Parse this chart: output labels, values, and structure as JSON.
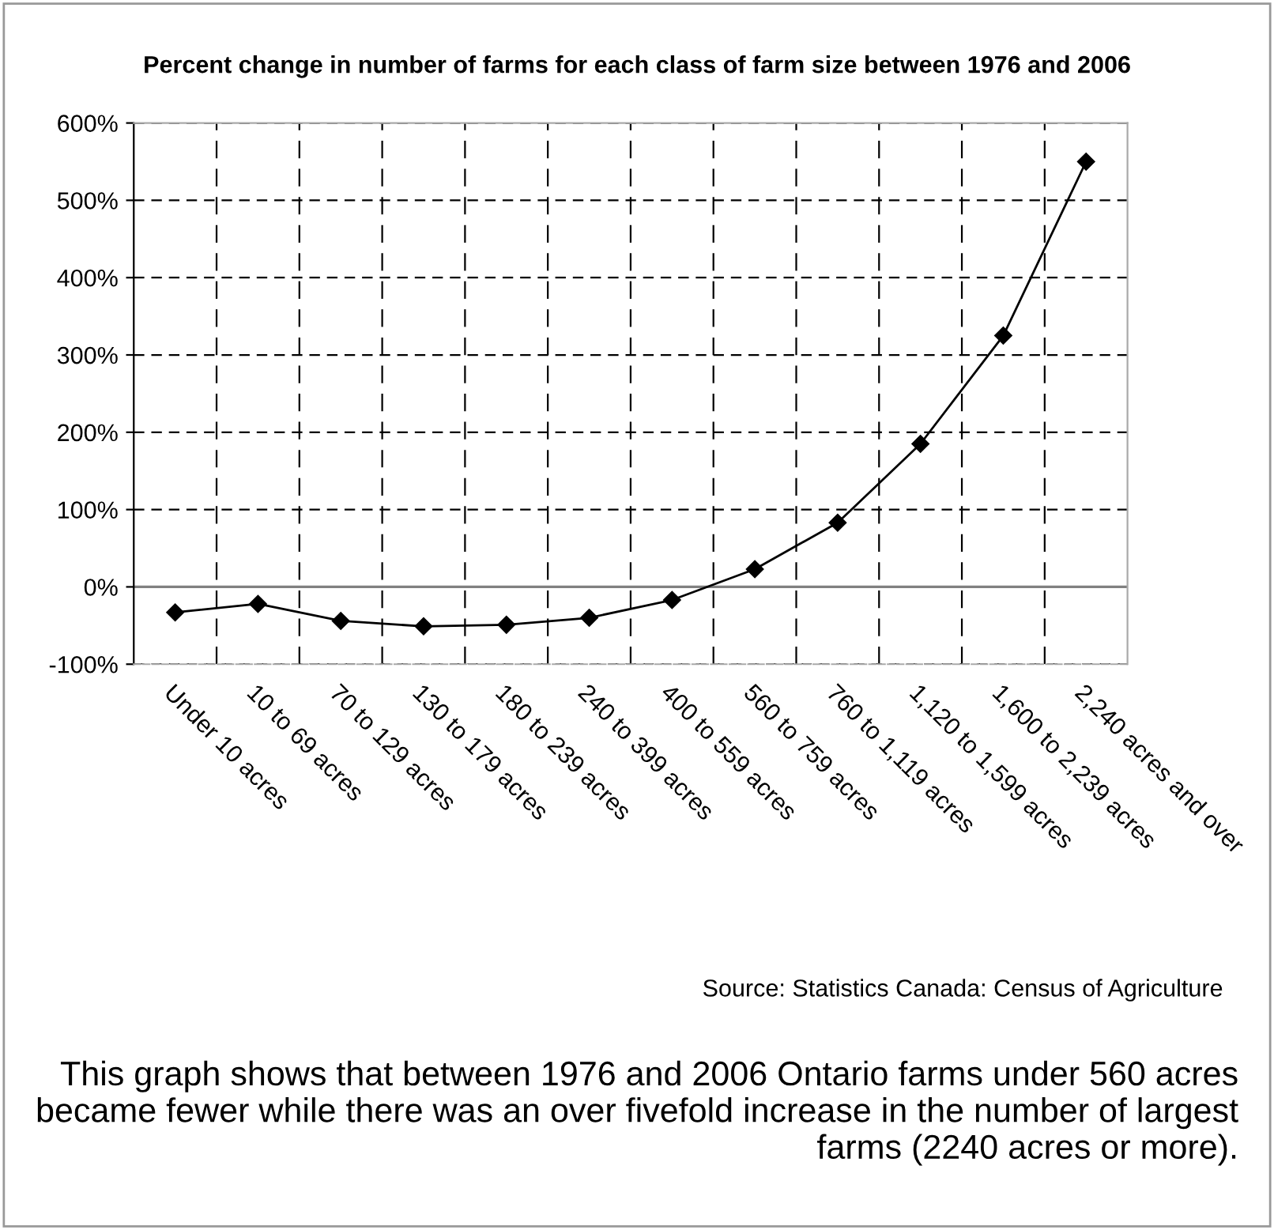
{
  "chart_data": {
    "type": "line",
    "title": "Percent change in number of farms for each class of farm size between 1976 and 2006",
    "categories": [
      "Under 10 acres",
      "10 to 69 acres",
      "70 to 129 acres",
      "130 to 179 acres",
      "180 to 239 acres",
      "240 to 399 acres",
      "400 to 559 acres",
      "560 to 759 acres",
      "760 to 1,119 acres",
      "1,120 to 1,599 acres",
      "1,600 to 2,239 acres",
      "2,240 acres and over"
    ],
    "series": [
      {
        "color": "#000000",
        "values": [
          -33,
          -22,
          -44,
          -51,
          -49,
          -40,
          -17,
          23,
          83,
          185,
          325,
          550
        ]
      }
    ],
    "ylim": [
      -100,
      600
    ],
    "yticks": [
      {
        "value": -100,
        "label": "-100%"
      },
      {
        "value": 0,
        "label": "0%"
      },
      {
        "value": 100,
        "label": "100%"
      },
      {
        "value": 200,
        "label": "200%"
      },
      {
        "value": 300,
        "label": "300%"
      },
      {
        "value": 400,
        "label": "400%"
      },
      {
        "value": 500,
        "label": "500%"
      },
      {
        "value": 600,
        "label": "600%"
      }
    ],
    "ref_lines": [
      {
        "axis": "y",
        "value": 0,
        "color": "#808080",
        "line_style": "solid"
      }
    ],
    "grid": true,
    "marker": "diamond",
    "line_style": "solid",
    "legend": false,
    "annotations": [
      "Source: Statistics Canada: Census of Agriculture",
      "This graph shows that between 1976 and 2006 Ontario farms under 560 acres became fewer while there was an over fivefold increase in the number of largest farms (2240 acres or more)."
    ]
  }
}
